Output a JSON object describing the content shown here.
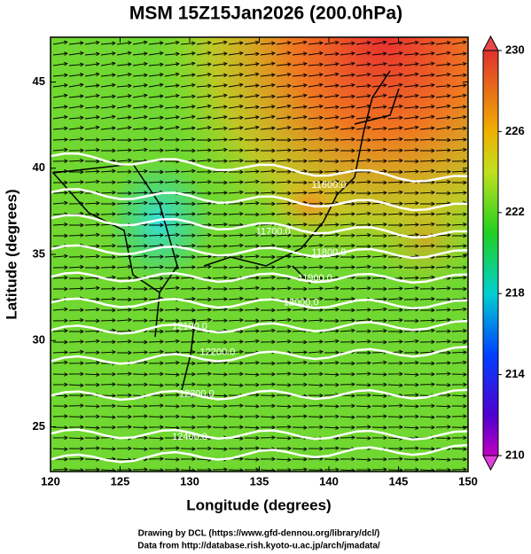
{
  "title": "MSM 15Z15Jan2026 (200.0hPa)",
  "map": {
    "x_label": "Longitude (degrees)",
    "y_label": "Latitude  (degrees)",
    "xlim": [
      120,
      150
    ],
    "ylim": [
      22.4,
      47.6
    ],
    "xticks": [
      120,
      125,
      130,
      135,
      140,
      145,
      150
    ],
    "yticks": [
      25,
      30,
      35,
      40,
      45
    ]
  },
  "colorbar": {
    "lim": [
      210,
      230
    ],
    "ticks": [
      210,
      214,
      218,
      222,
      226,
      230
    ]
  },
  "contour_labels": [
    "11600.0",
    "11700.0",
    "11800.0",
    "11900.0",
    "12000.0",
    "12100.0",
    "12200.0",
    "12300.0",
    "12400.0"
  ],
  "footer": [
    "Drawing by DCL (https://www.gfd-dennou.org/library/dcl/)",
    "Data from http://database.rish.kyoto-u.ac.jp/arch/jmadata/"
  ]
}
